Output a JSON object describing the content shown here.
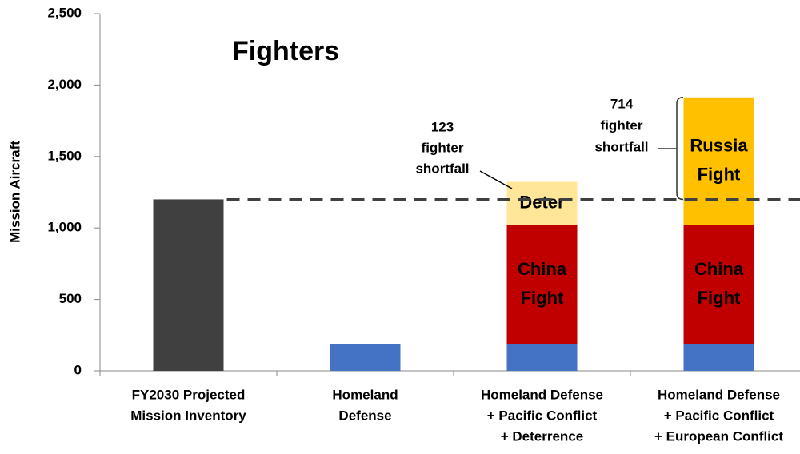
{
  "chart_data": {
    "type": "stacked_bar",
    "title": "Fighters",
    "y_label": "Mission Aircraft",
    "categories": [
      [
        "FY2030 Projected",
        "Mission Inventory"
      ],
      [
        "Homeland",
        "Defense"
      ],
      [
        "Homeland Defense",
        "+ Pacific Conflict",
        "+ Deterrence"
      ],
      [
        "Homeland Defense",
        "+ Pacific Conflict",
        "+ European Conflict"
      ]
    ],
    "series": [
      {
        "color": "#404040",
        "values": [
          1200,
          null,
          null,
          null
        ]
      },
      {
        "color": "#4472c4",
        "values": [
          null,
          185,
          185,
          185
        ]
      },
      {
        "name": [
          "China",
          "Fight"
        ],
        "color": "#c00000",
        "values": [
          null,
          null,
          835,
          835
        ]
      },
      {
        "name": [
          "Deter"
        ],
        "color": "#ffe699",
        "values": [
          null,
          null,
          303,
          null
        ]
      },
      {
        "name": [
          "Russia",
          "Fight"
        ],
        "color": "#ffc000",
        "values": [
          null,
          null,
          null,
          894
        ]
      }
    ],
    "annotations": [
      [
        "123",
        "fighter",
        "shortfall"
      ],
      [
        "714",
        "fighter",
        "shortfall"
      ]
    ],
    "ylim": [
      0,
      2500
    ],
    "yticks": [
      0,
      500,
      {
        "value": 1000,
        "label": "1,000"
      },
      {
        "value": 1500,
        "label": "1,500"
      },
      {
        "value": 2000,
        "label": "2,000"
      },
      {
        "value": 2500,
        "label": "2,500"
      }
    ]
  }
}
